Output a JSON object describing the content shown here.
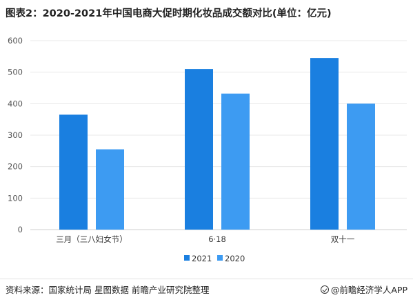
{
  "title": "图表2：2020-2021年中国电商大促时期化妆品成交额对比(单位：亿元)",
  "colors": {
    "s2021": "#1a7fe0",
    "s2020": "#3d9bf2",
    "grid": "#e8e8e8",
    "tick": "#555555"
  },
  "chart_data": {
    "type": "bar",
    "categories": [
      "三月（三八妇女节）",
      "6·18",
      "双十一"
    ],
    "series": [
      {
        "name": "2021",
        "values": [
          365,
          510,
          545
        ]
      },
      {
        "name": "2020",
        "values": [
          255,
          432,
          400
        ]
      }
    ],
    "ylim": [
      0,
      600
    ],
    "yticks": [
      "0",
      "100",
      "200",
      "300",
      "400",
      "500",
      "600"
    ],
    "grid": true,
    "legend": "bottom-center"
  },
  "footer": {
    "source": "资料来源：国家统计局 星图数据 前瞻产业研究院整理",
    "brand": "@前瞻经济学人APP"
  }
}
